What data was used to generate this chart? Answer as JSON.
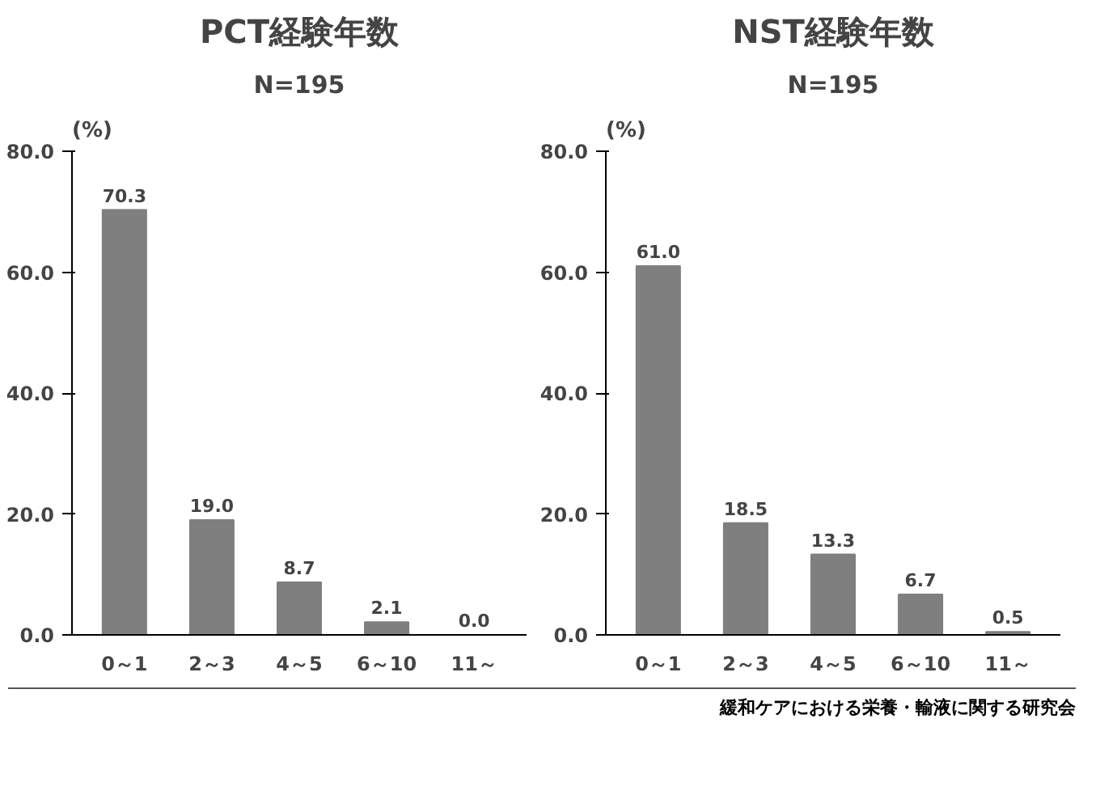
{
  "chart_data": [
    {
      "type": "bar",
      "title": "PCT経験年数",
      "subtitle": "N=195",
      "ylabel": "(%)",
      "categories": [
        "0～1",
        "2～3",
        "4～5",
        "6～10",
        "11～"
      ],
      "values": [
        70.3,
        19.0,
        8.7,
        2.1,
        0.0
      ],
      "value_labels": [
        "70.3",
        "19.0",
        "8.7",
        "2.1",
        "0.0"
      ],
      "color": "#7f7f7f",
      "ylim": [
        0,
        80
      ],
      "yticks": [
        {
          "value": 0,
          "label": "0.0"
        },
        {
          "value": 20,
          "label": "20.0"
        },
        {
          "value": 40,
          "label": "40.0"
        },
        {
          "value": 60,
          "label": "60.0"
        },
        {
          "value": 80,
          "label": "80.0"
        }
      ],
      "grid": false
    },
    {
      "type": "bar",
      "title": "NST経験年数",
      "subtitle": "N=195",
      "ylabel": "(%)",
      "categories": [
        "0～1",
        "2～3",
        "4～5",
        "6～10",
        "11～"
      ],
      "values": [
        61.0,
        18.5,
        13.3,
        6.7,
        0.5
      ],
      "value_labels": [
        "61.0",
        "18.5",
        "13.3",
        "6.7",
        "0.5"
      ],
      "color": "#7f7f7f",
      "ylim": [
        0,
        80
      ],
      "yticks": [
        {
          "value": 0,
          "label": "0.0"
        },
        {
          "value": 20,
          "label": "20.0"
        },
        {
          "value": 40,
          "label": "40.0"
        },
        {
          "value": 60,
          "label": "60.0"
        },
        {
          "value": 80,
          "label": "80.0"
        }
      ],
      "grid": false,
      "annotations": [
        "緩和ケアにおける栄養・輸液に関する研究会"
      ]
    }
  ]
}
